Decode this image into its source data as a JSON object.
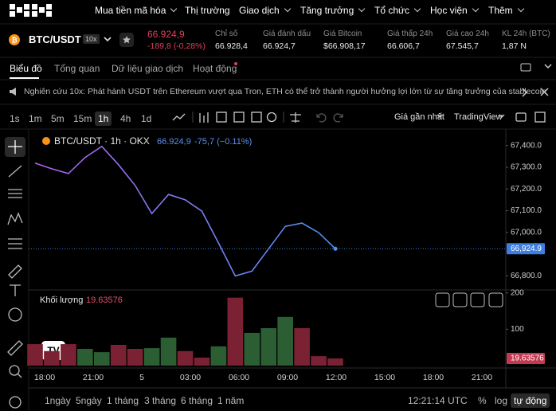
{
  "nav": {
    "logo": "OKX",
    "items": [
      "Mua tiền mã hóa",
      "Thị trường",
      "Giao dịch",
      "Tăng trưởng",
      "Tổ chức",
      "Học viện",
      "Thêm"
    ]
  },
  "ticker": {
    "pair": "BTC/USDT",
    "leverage": "10x",
    "price": "66.924,9",
    "change": "-189,8 (-0,28%)",
    "stats": [
      {
        "label": "Chỉ số",
        "value": "66.928,4"
      },
      {
        "label": "Giá đánh dấu",
        "value": "66.924,7"
      },
      {
        "label": "Giá Bitcoin",
        "value": "$66.908,17"
      },
      {
        "label": "Giá thấp 24h",
        "value": "66.606,7"
      },
      {
        "label": "Giá cao 24h",
        "value": "67.545,7"
      },
      {
        "label": "KL 24h (BTC)",
        "value": "1,87 N"
      }
    ]
  },
  "tabs": [
    "Biểu đồ",
    "Tổng quan",
    "Dữ liệu giao dịch",
    "Hoạt động"
  ],
  "announcement": "Nghiên cứu 10x: Phát hành USDT trên Ethereum vượt qua Tron, ETH có thể trở thành người hưởng lợi lớn từ sự tăng trưởng của stablecoin",
  "toolbar": {
    "intervals": [
      "1s",
      "1m",
      "5m",
      "15m",
      "1h",
      "4h",
      "1d"
    ],
    "price_source": "Giá gần nhất",
    "chart_engine": "TradingView"
  },
  "chart_data": [
    {
      "type": "line",
      "title": "BTC/USDT · 1h · OKX",
      "legend_price": "66.924,9",
      "legend_change": "-75,7 (−0.11%)",
      "current_label": "66,924.9",
      "x_labels": [
        "18:00",
        "21:00",
        "5",
        "03:00",
        "06:00",
        "09:00",
        "12:00",
        "15:00",
        "18:00",
        "21:00"
      ],
      "values": [
        67319,
        67293,
        67271,
        67345,
        67396,
        67312,
        67216,
        67087,
        67175,
        67150,
        67098,
        66951,
        66800,
        66822,
        66925,
        67028,
        67043,
        66999,
        66924.9
      ],
      "gradient": [
        "#b35ff0",
        "#4d93f0"
      ],
      "current_color": "#3d7fe0",
      "ylim": [
        66750,
        67465
      ],
      "yticks": [
        {
          "value": 67400,
          "label": "67,400.0"
        },
        {
          "value": 67300,
          "label": "67,300.0"
        },
        {
          "value": 67200,
          "label": "67,200.0"
        },
        {
          "value": 67100,
          "label": "67,100.0"
        },
        {
          "value": 67000,
          "label": "67,000.0"
        },
        {
          "value": 66800,
          "label": "66,800.0"
        }
      ],
      "grid": false
    },
    {
      "type": "bar",
      "title": "Khối lượng",
      "values": [
        59,
        40,
        59,
        46,
        37,
        57,
        46,
        48,
        77,
        40,
        22,
        53,
        187,
        90,
        103,
        134,
        103,
        26,
        19.63576
      ],
      "colors": [
        "#7a2233",
        "#7a2233",
        "#7a2233",
        "#2c5e34",
        "#2c5e34",
        "#7a2233",
        "#7a2233",
        "#2c5e34",
        "#2c5e34",
        "#7a2233",
        "#7a2233",
        "#2c5e34",
        "#7a2233",
        "#2c5e34",
        "#2c5e34",
        "#2c5e34",
        "#7a2233",
        "#7a2233",
        "#7a2233"
      ],
      "current_color": "#c23a52",
      "ylim": [
        0,
        206
      ],
      "yticks": [
        100,
        200
      ],
      "grid": false
    }
  ],
  "bottom": {
    "ranges": [
      "1ngày",
      "5ngày",
      "1 tháng",
      "3 tháng",
      "6 tháng",
      "1 năm"
    ],
    "clock": "12:21:14 UTC",
    "options": [
      "%",
      "log",
      "tự động"
    ]
  }
}
